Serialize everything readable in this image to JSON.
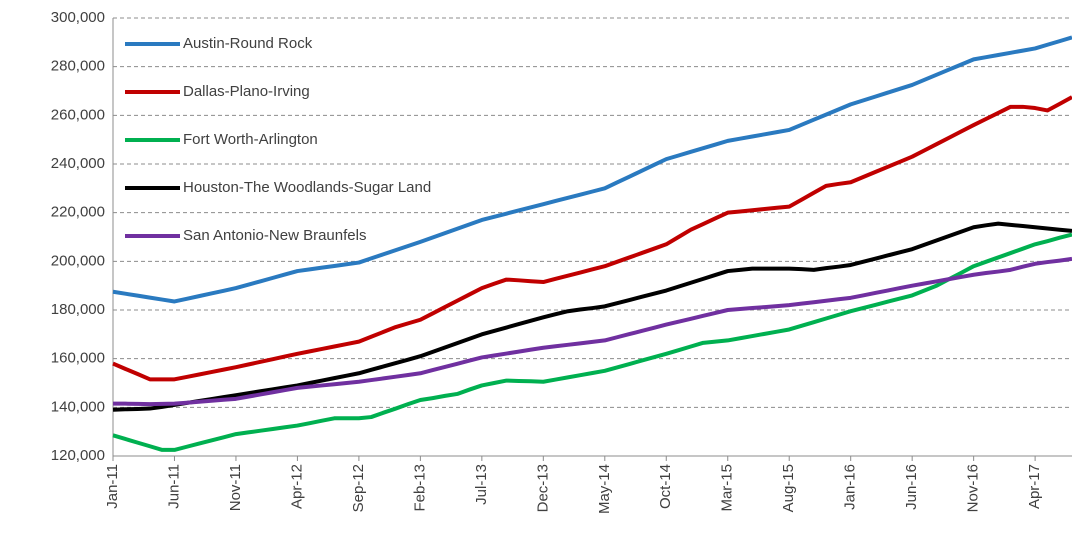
{
  "chart_data": {
    "type": "line",
    "categories": [
      "Jan-11",
      null,
      null,
      null,
      null,
      "Jun-11",
      null,
      null,
      null,
      null,
      "Nov-11",
      null,
      null,
      null,
      null,
      "Apr-12",
      null,
      null,
      null,
      null,
      "Sep-12",
      null,
      null,
      null,
      null,
      "Feb-13",
      null,
      null,
      null,
      null,
      "Jul-13",
      null,
      null,
      null,
      null,
      "Dec-13",
      null,
      null,
      null,
      null,
      "May-14",
      null,
      null,
      null,
      null,
      "Oct-14",
      null,
      null,
      null,
      null,
      "Mar-15",
      null,
      null,
      null,
      null,
      "Aug-15",
      null,
      null,
      null,
      null,
      "Jan-16",
      null,
      null,
      null,
      null,
      "Jun-16",
      null,
      null,
      null,
      null,
      "Nov-16",
      null,
      null,
      null,
      null,
      "Apr-17",
      null,
      null,
      null
    ],
    "series": [
      {
        "name": "Austin-Round Rock",
        "color": "#2a7ac0",
        "values": [
          187500,
          186700,
          185900,
          185100,
          184300,
          183500,
          184600,
          185700,
          186800,
          187900,
          189000,
          190400,
          191800,
          193200,
          194600,
          196000,
          196700,
          197400,
          198100,
          198800,
          199500,
          201200,
          202900,
          204600,
          206300,
          208000,
          209800,
          211600,
          213400,
          215200,
          217000,
          218300,
          219600,
          220900,
          222200,
          223500,
          224800,
          226100,
          227400,
          228700,
          230000,
          232400,
          234800,
          237200,
          239600,
          242000,
          243500,
          245000,
          246500,
          248000,
          249500,
          250400,
          251300,
          252200,
          253100,
          254000,
          256100,
          258200,
          260300,
          262400,
          264500,
          266100,
          267700,
          269300,
          270900,
          272500,
          274600,
          276700,
          278800,
          280900,
          283000,
          283900,
          284800,
          285700,
          286600,
          287500,
          289000,
          290500,
          292000
        ]
      },
      {
        "name": "Dallas-Plano-Irving",
        "color": "#c00000",
        "values": [
          158000,
          155800,
          153700,
          151500,
          151500,
          151500,
          152500,
          153500,
          154500,
          155500,
          156500,
          157600,
          158700,
          159800,
          160900,
          162000,
          163000,
          164000,
          165000,
          166000,
          167000,
          169000,
          171000,
          173000,
          174500,
          176000,
          178600,
          181200,
          183800,
          186400,
          189000,
          190800,
          192500,
          192200,
          191800,
          191500,
          192800,
          194100,
          195400,
          196700,
          198000,
          199800,
          201600,
          203400,
          205200,
          207000,
          210000,
          213000,
          215300,
          217700,
          220000,
          220500,
          221000,
          221500,
          222000,
          222500,
          225300,
          228200,
          231000,
          231800,
          232500,
          234600,
          236700,
          238800,
          240900,
          243000,
          245600,
          248200,
          250800,
          253400,
          256000,
          258500,
          261000,
          263500,
          263500,
          263000,
          262000,
          264700,
          267500
        ]
      },
      {
        "name": "Fort Worth-Arlington",
        "color": "#00b050",
        "values": [
          128500,
          127000,
          125500,
          124000,
          122500,
          122500,
          123800,
          125100,
          126400,
          127700,
          129000,
          129700,
          130400,
          131100,
          131800,
          132500,
          133500,
          134500,
          135500,
          135500,
          135500,
          136000,
          137800,
          139500,
          141300,
          143000,
          143800,
          144700,
          145500,
          147300,
          149000,
          150000,
          151000,
          150800,
          150700,
          150500,
          151400,
          152300,
          153200,
          154100,
          155000,
          156400,
          157800,
          159200,
          160600,
          162000,
          163500,
          165000,
          166500,
          167000,
          167500,
          168400,
          169300,
          170200,
          171100,
          172000,
          173500,
          175000,
          176500,
          178000,
          179500,
          180800,
          182100,
          183400,
          184700,
          186000,
          188000,
          190000,
          192700,
          195300,
          198000,
          199800,
          201600,
          203400,
          205200,
          207000,
          208300,
          209700,
          211000
        ]
      },
      {
        "name": "Houston-The Woodlands-Sugar Land",
        "color": "#000000",
        "values": [
          139000,
          139200,
          139300,
          139500,
          140200,
          141000,
          141800,
          142600,
          143400,
          144200,
          145000,
          145800,
          146600,
          147400,
          148200,
          149000,
          150000,
          151000,
          152000,
          153000,
          154000,
          155400,
          156800,
          158200,
          159600,
          161000,
          162800,
          164600,
          166400,
          168200,
          170000,
          171400,
          172800,
          174200,
          175600,
          177000,
          178300,
          179500,
          180200,
          180800,
          181500,
          182800,
          184100,
          185400,
          186700,
          188000,
          189600,
          191200,
          192800,
          194400,
          196000,
          196500,
          197000,
          197000,
          197000,
          197000,
          196800,
          196500,
          197200,
          197800,
          198500,
          199800,
          201100,
          202400,
          203700,
          205000,
          206800,
          208600,
          210400,
          212200,
          214000,
          214800,
          215500,
          215000,
          214500,
          214000,
          213500,
          213000,
          212500
        ]
      },
      {
        "name": "San Antonio-New Braunfels",
        "color": "#7030a0",
        "values": [
          141500,
          141500,
          141400,
          141300,
          141400,
          141500,
          141900,
          142300,
          142700,
          143100,
          143500,
          144400,
          145300,
          146200,
          147100,
          148000,
          148500,
          149000,
          149500,
          150000,
          150500,
          151200,
          151900,
          152600,
          153300,
          154000,
          155300,
          156600,
          157900,
          159200,
          160500,
          161300,
          162100,
          162900,
          163700,
          164500,
          165100,
          165700,
          166300,
          166900,
          167500,
          168800,
          170100,
          171400,
          172700,
          174000,
          175200,
          176400,
          177600,
          178800,
          180000,
          180400,
          180800,
          181200,
          181600,
          182000,
          182600,
          183200,
          183800,
          184400,
          185000,
          186000,
          187000,
          188000,
          189000,
          190000,
          190900,
          191800,
          192700,
          193600,
          194500,
          195200,
          195800,
          196500,
          197800,
          199000,
          199700,
          200300,
          201000
        ]
      }
    ],
    "ylim": [
      120000,
      300000
    ],
    "yticks": [
      {
        "value": 120000,
        "label": "120,000"
      },
      {
        "value": 140000,
        "label": "140,000"
      },
      {
        "value": 160000,
        "label": "160,000"
      },
      {
        "value": 180000,
        "label": "180,000"
      },
      {
        "value": 200000,
        "label": "200,000"
      },
      {
        "value": 220000,
        "label": "220,000"
      },
      {
        "value": 240000,
        "label": "240,000"
      },
      {
        "value": 260000,
        "label": "260,000"
      },
      {
        "value": 280000,
        "label": "280,000"
      },
      {
        "value": 300000,
        "label": "300,000"
      }
    ],
    "grid": true,
    "legend": "upper left"
  }
}
